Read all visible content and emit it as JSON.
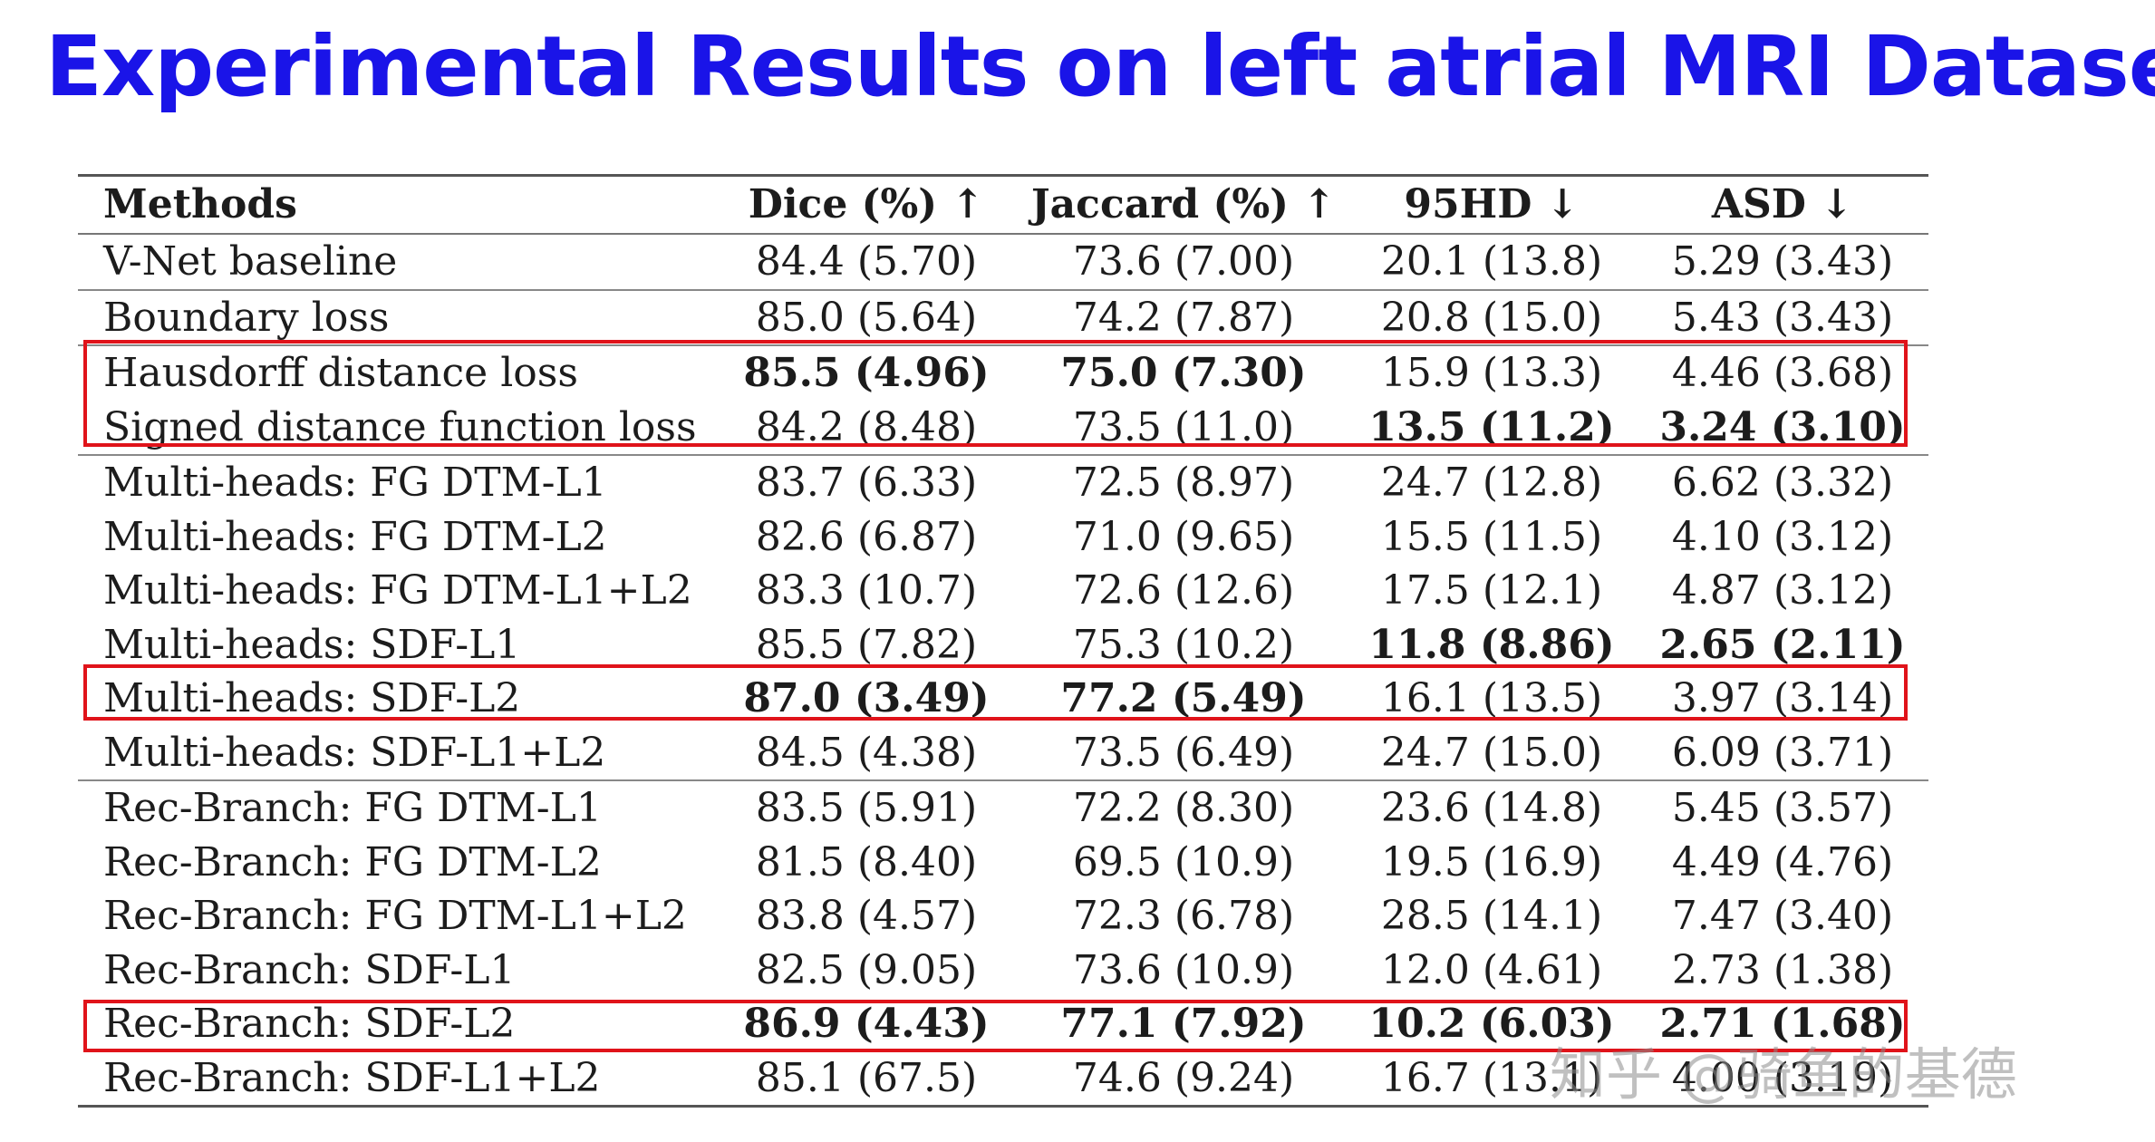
{
  "title": "Experimental Results on left atrial MRI Dataset",
  "table": {
    "headers": [
      "Methods",
      "Dice (%) ↑",
      "Jaccard (%) ↑",
      "95HD ↓",
      "ASD ↓"
    ],
    "rows": [
      {
        "cells": [
          "V-Net baseline",
          "84.4 (5.70)",
          "73.6 (7.00)",
          "20.1 (13.8)",
          "5.29 (3.43)"
        ]
      },
      {
        "cells": [
          "Boundary loss",
          "85.0 (5.64)",
          "74.2 (7.87)",
          "20.8 (15.0)",
          "5.43 (3.43)"
        ]
      },
      {
        "cells": [
          "Hausdorff distance loss",
          "85.5 (4.96)",
          "75.0 (7.30)",
          "15.9 (13.3)",
          "4.46 (3.68)"
        ]
      },
      {
        "cells": [
          "Signed distance function loss",
          "84.2 (8.48)",
          "73.5 (11.0)",
          "13.5 (11.2)",
          "3.24 (3.10)"
        ]
      },
      {
        "cells": [
          "Multi-heads: FG DTM-L1",
          "83.7 (6.33)",
          "72.5 (8.97)",
          "24.7 (12.8)",
          "6.62 (3.32)"
        ]
      },
      {
        "cells": [
          "Multi-heads: FG DTM-L2",
          "82.6 (6.87)",
          "71.0 (9.65)",
          "15.5 (11.5)",
          "4.10 (3.12)"
        ]
      },
      {
        "cells": [
          "Multi-heads: FG DTM-L1+L2",
          "83.3 (10.7)",
          "72.6 (12.6)",
          "17.5 (12.1)",
          "4.87 (3.12)"
        ]
      },
      {
        "cells": [
          "Multi-heads: SDF-L1",
          "85.5 (7.82)",
          "75.3 (10.2)",
          "11.8 (8.86)",
          "2.65 (2.11)"
        ]
      },
      {
        "cells": [
          "Multi-heads: SDF-L2",
          "87.0 (3.49)",
          "77.2 (5.49)",
          "16.1 (13.5)",
          "3.97 (3.14)"
        ]
      },
      {
        "cells": [
          "Multi-heads: SDF-L1+L2",
          "84.5 (4.38)",
          "73.5 (6.49)",
          "24.7 (15.0)",
          "6.09 (3.71)"
        ]
      },
      {
        "cells": [
          "Rec-Branch: FG DTM-L1",
          "83.5 (5.91)",
          "72.2 (8.30)",
          "23.6 (14.8)",
          "5.45 (3.57)"
        ]
      },
      {
        "cells": [
          "Rec-Branch: FG DTM-L2",
          "81.5 (8.40)",
          "69.5 (10.9)",
          "19.5 (16.9)",
          "4.49 (4.76)"
        ]
      },
      {
        "cells": [
          "Rec-Branch: FG DTM-L1+L2",
          "83.8 (4.57)",
          "72.3 (6.78)",
          "28.5 (14.1)",
          "7.47 (3.40)"
        ]
      },
      {
        "cells": [
          "Rec-Branch: SDF-L1",
          "82.5 (9.05)",
          "73.6 (10.9)",
          "12.0 (4.61)",
          "2.73 (1.38)"
        ]
      },
      {
        "cells": [
          "Rec-Branch: SDF-L2",
          "86.9 (4.43)",
          "77.1 (7.92)",
          "10.2 (6.03)",
          "2.71 (1.68)"
        ]
      },
      {
        "cells": [
          "Rec-Branch: SDF-L1+L2",
          "85.1 (67.5)",
          "74.6 (9.24)",
          "16.7 (13.1)",
          "4.00 (3.19)"
        ]
      }
    ]
  },
  "watermark": "知乎 @骑鱼的基德",
  "colors": {
    "title": "#1a14e8",
    "highlight_box": "#e0131a"
  }
}
